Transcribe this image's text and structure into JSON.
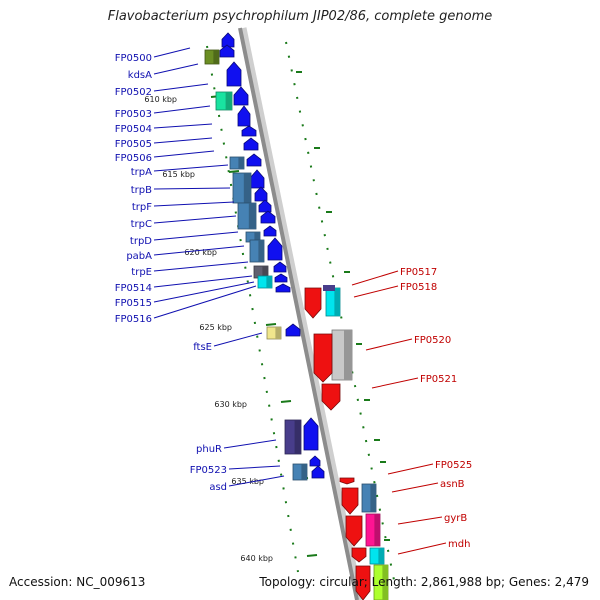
{
  "title": "Flavobacterium psychrophilum JIP02/86, complete genome",
  "footer": {
    "accession": "Accession: NC_009613",
    "topology": "Topology: circular; Length: 2,861,988 bp; Genes: 2,479"
  },
  "colors": {
    "backbone": "#8c8c8c",
    "tick": "#1a7a1a",
    "left_label": "#1010b0",
    "right_label": "#c00000",
    "forward_gene": "#1010f0",
    "reverse_gene": "#ee1111"
  },
  "ruler": [
    {
      "label": "610 kbp"
    },
    {
      "label": "615 kbp"
    },
    {
      "label": "620 kbp"
    },
    {
      "label": "625 kbp"
    },
    {
      "label": "630 kbp"
    },
    {
      "label": "635 kbp"
    },
    {
      "label": "640 kbp"
    }
  ],
  "left_genes": [
    {
      "label": "FP0500",
      "color": "#6b8e23"
    },
    {
      "label": "kdsA",
      "color": "#1010f0"
    },
    {
      "label": "FP0502",
      "color": "#19e3a0"
    },
    {
      "label": "FP0503",
      "color": "#1010f0"
    },
    {
      "label": "FP0504",
      "color": "#1010f0"
    },
    {
      "label": "FP0505",
      "color": "#1010f0"
    },
    {
      "label": "FP0506",
      "color": "#1010f0"
    },
    {
      "label": "trpA",
      "color": "#4682b4"
    },
    {
      "label": "trpB",
      "color": "#4682b4"
    },
    {
      "label": "trpF",
      "color": "#4682b4"
    },
    {
      "label": "trpC",
      "color": "#4682b4"
    },
    {
      "label": "trpD",
      "color": "#4682b4"
    },
    {
      "label": "pabA",
      "color": "#1010f0"
    },
    {
      "label": "trpE",
      "color": "#1010f0"
    },
    {
      "label": "FP0514",
      "color": "#606070"
    },
    {
      "label": "FP0515",
      "color": "#00e5ee"
    },
    {
      "label": "FP0516",
      "color": "#1010f0"
    },
    {
      "label": "ftsE",
      "color": "#f0e68c"
    },
    {
      "label": "phuR",
      "color": "#483d8b"
    },
    {
      "label": "FP0523",
      "color": "#4682b4"
    },
    {
      "label": "asd",
      "color": "#1010f0"
    }
  ],
  "right_genes": [
    {
      "label": "FP0517",
      "color": "#ee1111"
    },
    {
      "label": "FP0518",
      "color": "#00e5ee"
    },
    {
      "label": "FP0520",
      "color": "#c8c8c8"
    },
    {
      "label": "FP0521",
      "color": "#ee1111"
    },
    {
      "label": "FP0525",
      "color": "#ee1111"
    },
    {
      "label": "asnB",
      "color": "#4682b4"
    },
    {
      "label": "gyrB",
      "color": "#ff1493"
    },
    {
      "label": "mdh",
      "color": "#00e5ee"
    }
  ]
}
